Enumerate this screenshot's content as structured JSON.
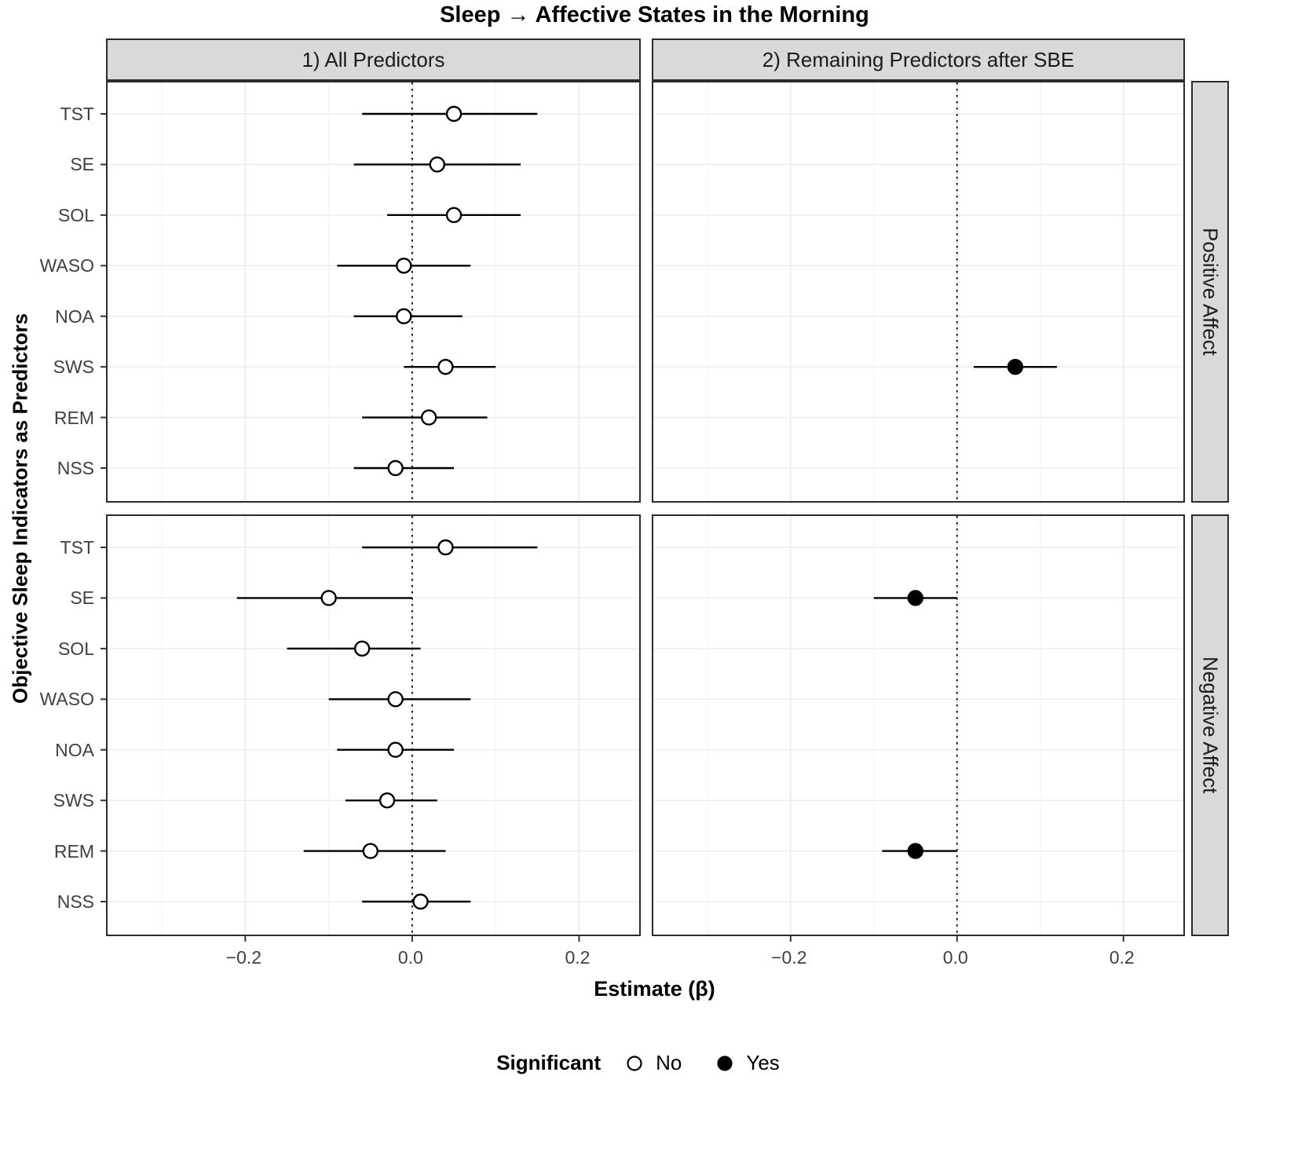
{
  "title": "Sleep → Affective States in the Morning",
  "axes": {
    "x_title": "Estimate (β)",
    "y_title": "Objective Sleep Indicators as Predictors"
  },
  "strips": {
    "cols": [
      "1) All Predictors",
      "2) Remaining Predictors after SBE"
    ],
    "rows": [
      "Positive Affect",
      "Negative Affect"
    ]
  },
  "legend": {
    "title": "Significant",
    "no": "No",
    "yes": "Yes"
  },
  "chart_data": {
    "type": "scatter",
    "subtype": "forest-plot-with-confidence-intervals",
    "title": "Sleep → Affective States in the Morning",
    "xlabel": "Estimate (β)",
    "ylabel": "Objective Sleep Indicators as Predictors",
    "facets": {
      "columns": [
        "1) All Predictors",
        "2) Remaining Predictors after SBE"
      ],
      "rows": [
        "Positive Affect",
        "Negative Affect"
      ]
    },
    "categories": [
      "TST",
      "SE",
      "SOL",
      "WASO",
      "NOA",
      "SWS",
      "REM",
      "NSS"
    ],
    "xlim": [
      -0.365,
      0.272
    ],
    "x_ticks": [
      -0.2,
      0.0,
      0.2
    ],
    "minor_breaks": [
      -0.3,
      -0.1,
      0.1
    ],
    "zero_line": 0.0,
    "grid": true,
    "legend": {
      "title": "Significant",
      "open_circle": "No",
      "filled_circle": "Yes",
      "position": "bottom"
    },
    "panels": [
      {
        "row": "Positive Affect",
        "col": "1) All Predictors",
        "points": [
          {
            "label": "TST",
            "est": 0.05,
            "lo": -0.06,
            "hi": 0.15,
            "significant": false
          },
          {
            "label": "SE",
            "est": 0.03,
            "lo": -0.07,
            "hi": 0.13,
            "significant": false
          },
          {
            "label": "SOL",
            "est": 0.05,
            "lo": -0.03,
            "hi": 0.13,
            "significant": false
          },
          {
            "label": "WASO",
            "est": -0.01,
            "lo": -0.09,
            "hi": 0.07,
            "significant": false
          },
          {
            "label": "NOA",
            "est": -0.01,
            "lo": -0.07,
            "hi": 0.06,
            "significant": false
          },
          {
            "label": "SWS",
            "est": 0.04,
            "lo": -0.01,
            "hi": 0.1,
            "significant": false
          },
          {
            "label": "REM",
            "est": 0.02,
            "lo": -0.06,
            "hi": 0.09,
            "significant": false
          },
          {
            "label": "NSS",
            "est": -0.02,
            "lo": -0.07,
            "hi": 0.05,
            "significant": false
          }
        ]
      },
      {
        "row": "Positive Affect",
        "col": "2) Remaining Predictors after SBE",
        "points": [
          {
            "label": "SWS",
            "est": 0.07,
            "lo": 0.02,
            "hi": 0.12,
            "significant": true
          }
        ]
      },
      {
        "row": "Negative Affect",
        "col": "1) All Predictors",
        "points": [
          {
            "label": "TST",
            "est": 0.04,
            "lo": -0.06,
            "hi": 0.15,
            "significant": false
          },
          {
            "label": "SE",
            "est": -0.1,
            "lo": -0.21,
            "hi": 0.0,
            "significant": false
          },
          {
            "label": "SOL",
            "est": -0.06,
            "lo": -0.15,
            "hi": 0.01,
            "significant": false
          },
          {
            "label": "WASO",
            "est": -0.02,
            "lo": -0.1,
            "hi": 0.07,
            "significant": false
          },
          {
            "label": "NOA",
            "est": -0.02,
            "lo": -0.09,
            "hi": 0.05,
            "significant": false
          },
          {
            "label": "SWS",
            "est": -0.03,
            "lo": -0.08,
            "hi": 0.03,
            "significant": false
          },
          {
            "label": "REM",
            "est": -0.05,
            "lo": -0.13,
            "hi": 0.04,
            "significant": false
          },
          {
            "label": "NSS",
            "est": 0.01,
            "lo": -0.06,
            "hi": 0.07,
            "significant": false
          }
        ]
      },
      {
        "row": "Negative Affect",
        "col": "2) Remaining Predictors after SBE",
        "points": [
          {
            "label": "SE",
            "est": -0.05,
            "lo": -0.1,
            "hi": 0.0,
            "significant": true
          },
          {
            "label": "REM",
            "est": -0.05,
            "lo": -0.09,
            "hi": 0.0,
            "significant": true
          }
        ]
      }
    ]
  }
}
